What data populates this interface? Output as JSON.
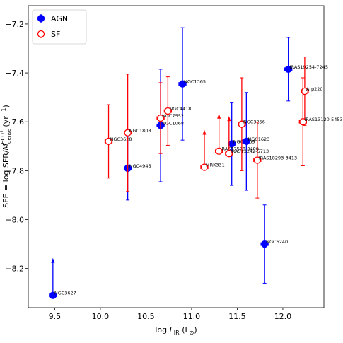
{
  "chart_data": {
    "type": "scatter",
    "x_label": [
      "log ",
      "L",
      "IR",
      " (L",
      "⊙",
      ")"
    ],
    "y_label": [
      "SFE = log SFR/",
      "M",
      "dense",
      "HCO",
      "+",
      " (yr",
      "−1",
      ")"
    ],
    "xlim": [
      9.21,
      12.45
    ],
    "ylim": [
      -8.36,
      -7.125
    ],
    "xticks": [
      9.5,
      {
        "value": 10,
        "label": "10.0"
      },
      10.5,
      {
        "value": 11,
        "label": "11.0"
      },
      11.5,
      {
        "value": 12,
        "label": "12.0"
      }
    ],
    "yticks": [
      {
        "value": -8.2,
        "label": "−8.2"
      },
      {
        "value": -8.0,
        "label": "−8.0"
      },
      {
        "value": -7.8,
        "label": "−7.8"
      },
      {
        "value": -7.6,
        "label": "−7.6"
      },
      {
        "value": -7.4,
        "label": "−7.4"
      },
      {
        "value": -7.2,
        "label": "−7.2"
      }
    ],
    "legend": "upper left",
    "series": [
      {
        "name": "AGN",
        "color": "#0000ff",
        "filled": true,
        "labels": [
          "NGC3627",
          "NGC4945",
          "NGC1068",
          "NGC1365",
          "NGC7469",
          "NGC1623",
          "NGC6240",
          "IRAS19254-7245"
        ],
        "x": [
          9.48,
          10.3,
          10.66,
          10.9,
          11.44,
          11.6,
          11.8,
          12.06
        ],
        "values": [
          -8.31,
          -7.79,
          -7.615,
          -7.445,
          -7.69,
          -7.68,
          -8.1,
          -7.385
        ],
        "xerr": [
          0.04,
          0.04,
          0.04,
          0.04,
          0.04,
          0.04,
          0.04,
          0.04
        ],
        "yerr": [
          null,
          0.13,
          0.23,
          0.23,
          0.17,
          0.2,
          0.16,
          0.13
        ],
        "lower_limit": [
          true,
          false,
          false,
          false,
          false,
          false,
          false,
          false
        ]
      },
      {
        "name": "SF",
        "color": "#ff0000",
        "filled": false,
        "labels": [
          "NGC3628",
          "NGC1808",
          "NGC7552",
          "NGC4418",
          "MRK331",
          "IRAS17578-0400",
          "IRAS13242-5713",
          "NGC3256",
          "IRAS18293-3413",
          "Arp220",
          "IRAS13120-5453"
        ],
        "x": [
          10.09,
          10.3,
          10.66,
          10.74,
          11.14,
          11.3,
          11.41,
          11.55,
          11.72,
          12.24,
          12.22
        ],
        "values": [
          -7.68,
          -7.645,
          -7.585,
          -7.556,
          -7.786,
          -7.72,
          -7.73,
          -7.61,
          -7.757,
          -7.475,
          -7.6
        ],
        "xerr": [
          0.04,
          0.04,
          0.04,
          0.04,
          0.04,
          0.04,
          0.04,
          0.04,
          0.04,
          0.04,
          0.04
        ],
        "yerr": [
          0.15,
          0.24,
          0.145,
          0.14,
          null,
          null,
          null,
          0.19,
          0.155,
          0.14,
          0.18
        ],
        "lower_limit": [
          false,
          false,
          false,
          false,
          true,
          true,
          true,
          false,
          false,
          false,
          false
        ]
      }
    ]
  }
}
